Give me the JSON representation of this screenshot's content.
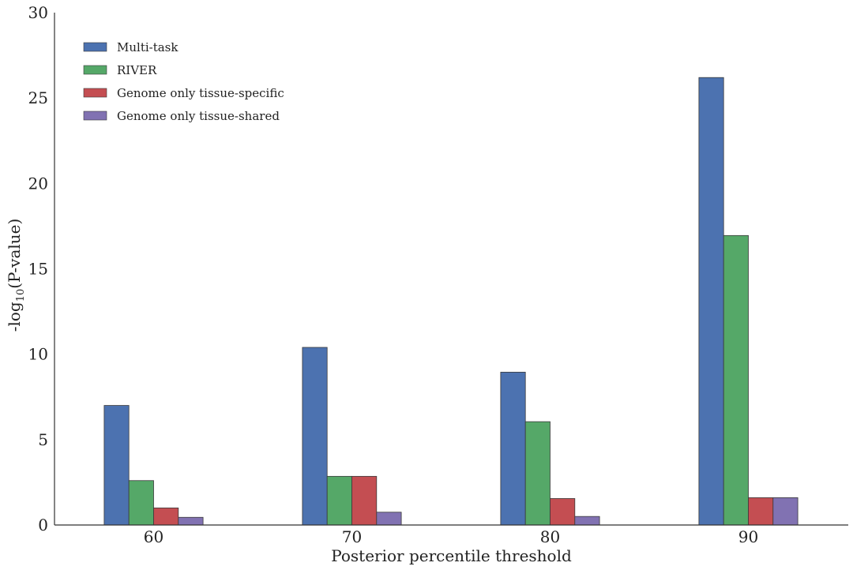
{
  "chart_data": {
    "type": "bar",
    "title": "",
    "xlabel": "Posterior percentile threshold",
    "ylabel": {
      "prefix": "-log",
      "subscript": "10",
      "suffix": "(P-value)"
    },
    "categories": [
      "60",
      "70",
      "80",
      "90"
    ],
    "ylim": [
      0,
      30
    ],
    "yticks": [
      0,
      5,
      10,
      15,
      20,
      25,
      30
    ],
    "grid": false,
    "legend_position": "top-left",
    "series": [
      {
        "name": "Multi-task",
        "color": "#4c72b0",
        "values": [
          7.0,
          10.4,
          8.95,
          26.2
        ]
      },
      {
        "name": "RIVER",
        "color": "#55a868",
        "values": [
          2.6,
          2.85,
          6.05,
          16.95
        ]
      },
      {
        "name": "Genome only tissue-specific",
        "color": "#c44e52",
        "values": [
          1.0,
          2.85,
          1.55,
          1.6
        ]
      },
      {
        "name": "Genome only tissue-shared",
        "color": "#8172b2",
        "values": [
          0.45,
          0.75,
          0.5,
          1.6
        ]
      }
    ]
  }
}
